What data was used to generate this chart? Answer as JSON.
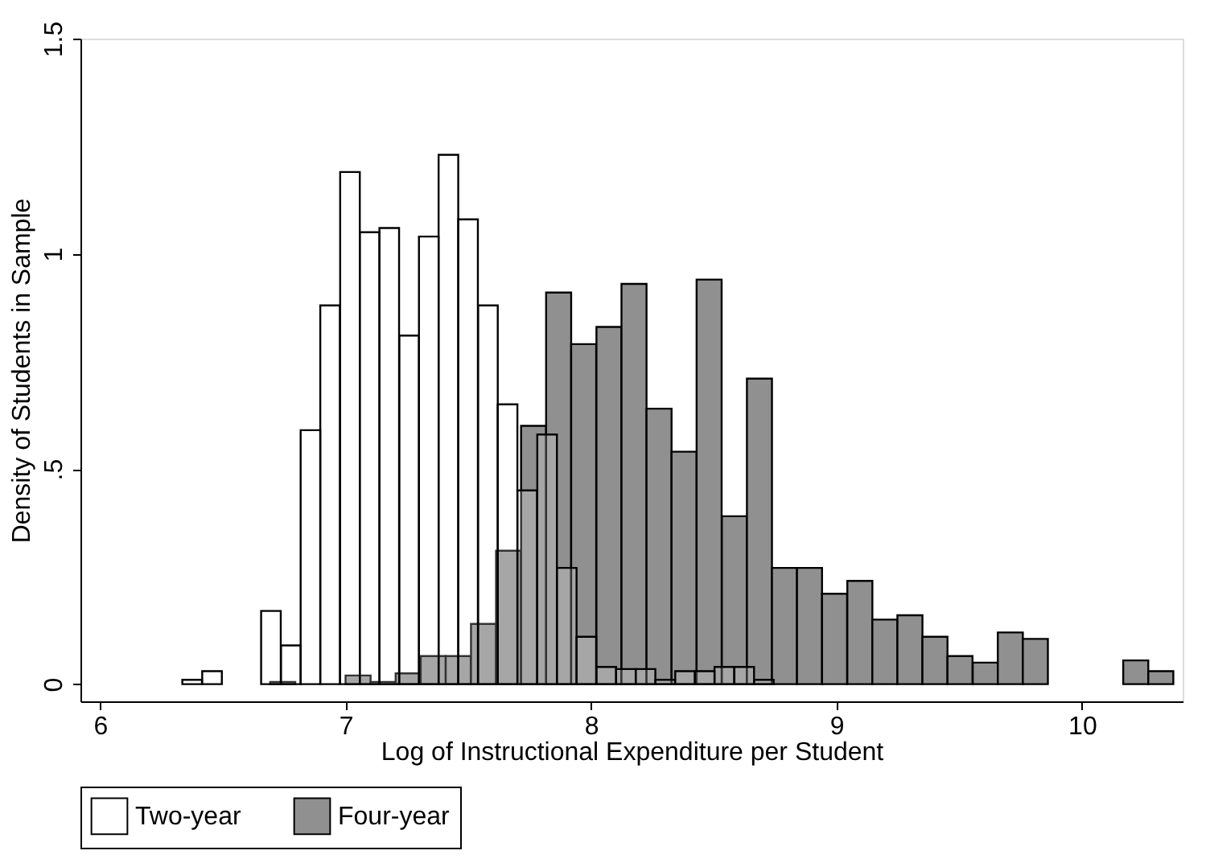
{
  "chart_data": {
    "type": "bar",
    "xlabel": "Log of Instructional Expenditure per Student",
    "ylabel": "Density of Students in Sample",
    "series": [
      {
        "name": "Two-year",
        "color": "#ffffff",
        "x": [
          6.375,
          6.456,
          6.536,
          6.616,
          6.696,
          6.777,
          6.857,
          6.937,
          7.018,
          7.098,
          7.178,
          7.259,
          7.339,
          7.419,
          7.499,
          7.58,
          7.66,
          7.74,
          7.821,
          7.901,
          7.981,
          8.062,
          8.142,
          8.222,
          8.302,
          8.383,
          8.463,
          8.543,
          8.624,
          8.704
        ],
        "values": [
          0.01,
          0.03,
          null,
          null,
          0.17,
          0.09,
          0.59,
          0.88,
          1.19,
          1.05,
          1.06,
          0.81,
          1.04,
          1.23,
          1.08,
          0.88,
          0.65,
          0.45,
          0.58,
          0.27,
          0.11,
          0.04,
          0.035,
          0.035,
          0.01,
          0.03,
          0.03,
          0.04,
          0.04,
          0.01
        ]
      },
      {
        "name": "Four-year",
        "color": "#909090",
        "x": [
          6.744,
          6.846,
          6.948,
          7.051,
          7.153,
          7.255,
          7.357,
          7.459,
          7.562,
          7.664,
          7.766,
          7.868,
          7.97,
          8.073,
          8.175,
          8.277,
          8.379,
          8.481,
          8.584,
          8.686,
          8.788,
          8.89,
          8.992,
          9.095,
          9.197,
          9.299,
          9.401,
          9.503,
          9.606,
          9.708,
          9.81,
          9.912,
          10.014,
          10.117,
          10.219,
          10.321
        ],
        "values": [
          0.005,
          null,
          null,
          0.02,
          0.005,
          0.025,
          0.065,
          0.065,
          0.14,
          0.31,
          0.6,
          0.91,
          0.79,
          0.83,
          0.93,
          0.64,
          0.54,
          0.94,
          0.39,
          0.71,
          0.27,
          0.27,
          0.21,
          0.24,
          0.15,
          0.16,
          0.11,
          0.065,
          0.05,
          0.12,
          0.105,
          null,
          null,
          null,
          0.055,
          0.03
        ]
      }
    ],
    "xlim": [
      5.92,
      10.41
    ],
    "xticks": [
      6,
      7,
      8,
      9,
      10
    ],
    "ylim": [
      -0.04,
      1.5
    ],
    "yticks": [
      0,
      {
        "value": 0.5,
        "label": ".5"
      },
      1,
      1.5
    ],
    "grid": false,
    "legend": "bottom"
  }
}
